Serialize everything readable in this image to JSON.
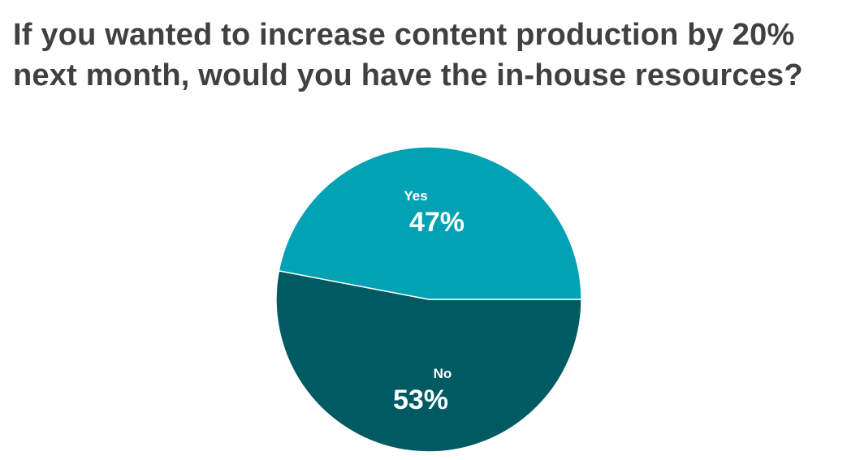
{
  "chart_data": {
    "type": "pie",
    "title_lines": [
      "If you wanted to increase content production by 20%",
      "next month, would you have the in-house resources?"
    ],
    "slices": [
      {
        "label": "Yes",
        "value": 47,
        "value_label": "47%",
        "color": "#00a2b4"
      },
      {
        "label": "No",
        "value": 53,
        "value_label": "53%",
        "color": "#005a62"
      }
    ],
    "slice_border_color": "#ffffff"
  }
}
